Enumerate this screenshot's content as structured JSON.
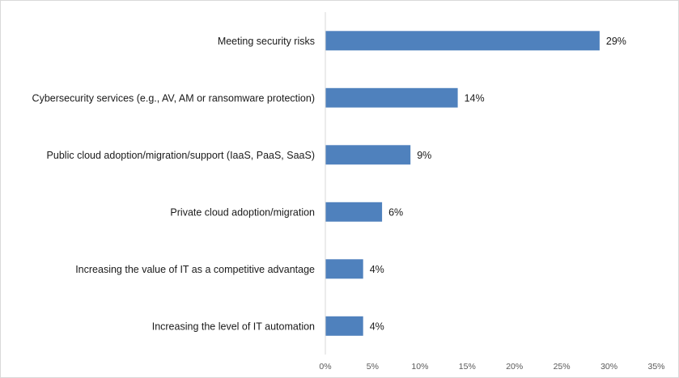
{
  "chart_data": {
    "type": "bar",
    "orientation": "horizontal",
    "categories": [
      "Meeting security risks",
      "Cybersecurity services (e.g., AV, AM or ransomware protection)",
      "Public cloud adoption/migration/support (IaaS, PaaS, SaaS)",
      "Private cloud adoption/migration",
      "Increasing the value of IT as a competitive advantage",
      "Increasing the level of IT automation"
    ],
    "values": [
      29,
      14,
      9,
      6,
      4,
      4
    ],
    "value_labels": [
      "29%",
      "14%",
      "9%",
      "6%",
      "4%",
      "4%"
    ],
    "xlim": [
      0,
      35
    ],
    "x_ticks": [
      0,
      5,
      10,
      15,
      20,
      25,
      30,
      35
    ],
    "x_tick_labels": [
      "0%",
      "5%",
      "10%",
      "15%",
      "20%",
      "25%",
      "30%",
      "35%"
    ],
    "grid": false,
    "legend": "none",
    "bar_color": "#4f81bd",
    "axis_color": "#d9d9d9"
  }
}
